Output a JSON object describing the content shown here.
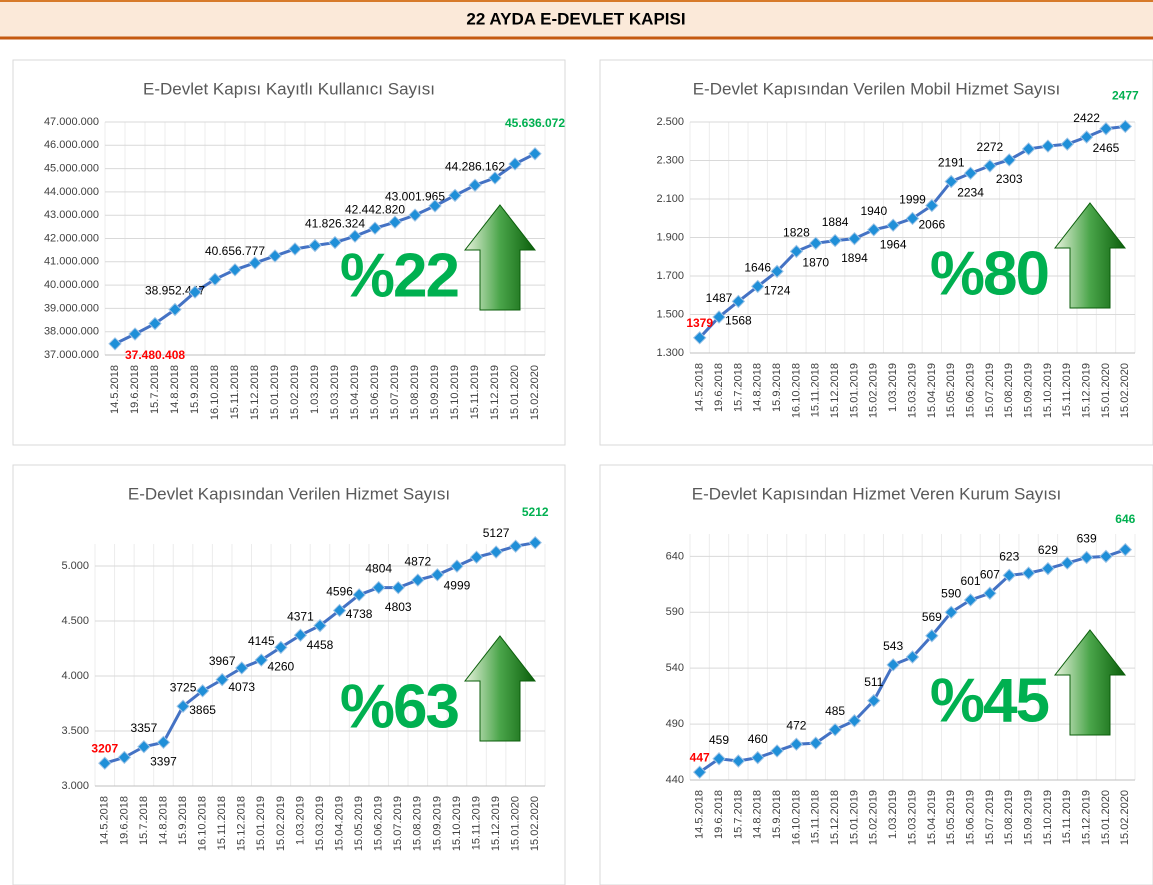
{
  "header": {
    "title": "22 AYDA E-DEVLET KAPISI"
  },
  "chart_data": [
    {
      "type": "line",
      "title": "E-Devlet Kapısı Kayıtlı Kullanıcı Sayısı",
      "annotation": "%22",
      "categories": [
        "14.5.2018",
        "19.6.2018",
        "15.7.2018",
        "14.8.2018",
        "15.9.2018",
        "16.10.2018",
        "15.11.2018",
        "15.12.2018",
        "15.01.2019",
        "15.02.2019",
        "1.03.2019",
        "15.03.2019",
        "15.04.2019",
        "15.06.2019",
        "15.07.2019",
        "15.08.2019",
        "15.09.2019",
        "15.10.2019",
        "15.11.2019",
        "15.12.2019",
        "15.01.2020",
        "15.02.2020"
      ],
      "values": [
        37480408,
        37900000,
        38350000,
        38952447,
        39700000,
        40250000,
        40656777,
        40950000,
        41250000,
        41550000,
        41700000,
        41826324,
        42100000,
        42442820,
        42700000,
        43001965,
        43400000,
        43850000,
        44286162,
        44600000,
        45200000,
        45636072
      ],
      "value_labels": [
        "37.480.408",
        null,
        null,
        "38.952.447",
        null,
        null,
        "40.656.777",
        null,
        null,
        null,
        null,
        "41.826.324",
        null,
        "42.442.820",
        null,
        "43.001.965",
        null,
        null,
        "44.286.162",
        null,
        null,
        "45.636.072"
      ],
      "color": "#4472c4",
      "marker_color": "#1f8fd8",
      "first_label_color": "#ff0000",
      "last_label_color": "#00b050",
      "grid": true,
      "ylim": [
        37000000,
        47000000
      ],
      "yticks": [
        {
          "value": 37000000,
          "label": "37.000.000"
        },
        {
          "value": 38000000,
          "label": "38.000.000"
        },
        {
          "value": 39000000,
          "label": "39.000.000"
        },
        {
          "value": 40000000,
          "label": "40.000.000"
        },
        {
          "value": 41000000,
          "label": "41.000.000"
        },
        {
          "value": 42000000,
          "label": "42.000.000"
        },
        {
          "value": 43000000,
          "label": "43.000.000"
        },
        {
          "value": 44000000,
          "label": "44.000.000"
        },
        {
          "value": 45000000,
          "label": "45.000.000"
        },
        {
          "value": 46000000,
          "label": "46.000.000"
        },
        {
          "value": 47000000,
          "label": "47.000.000"
        }
      ]
    },
    {
      "type": "line",
      "title": "E-Devlet Kapısından Verilen Mobil Hizmet Sayısı",
      "annotation": "%80",
      "categories": [
        "14.5.2018",
        "19.6.2018",
        "15.7.2018",
        "14.8.2018",
        "15.9.2018",
        "16.10.2018",
        "15.11.2018",
        "15.12.2018",
        "15.01.2019",
        "15.02.2019",
        "1.03.2019",
        "15.03.2019",
        "15.04.2019",
        "15.05.2019",
        "15.06.2019",
        "15.07.2019",
        "15.08.2019",
        "15.09.2019",
        "15.10.2019",
        "15.11.2019",
        "15.12.2019",
        "15.01.2020",
        "15.02.2020"
      ],
      "values": [
        1379,
        1487,
        1568,
        1646,
        1724,
        1828,
        1870,
        1884,
        1894,
        1940,
        1964,
        1999,
        2066,
        2191,
        2234,
        2272,
        2303,
        2360,
        2375,
        2385,
        2422,
        2465,
        2477
      ],
      "value_labels": [
        "1379",
        "1487",
        "1568",
        "1646",
        "1724",
        "1828",
        "1870",
        "1884",
        "1894",
        "1940",
        "1964",
        "1999",
        "2066",
        "2191",
        "2234",
        "2272",
        "2303",
        null,
        null,
        null,
        "2422",
        "2465",
        "2477"
      ],
      "color": "#4472c4",
      "marker_color": "#1f8fd8",
      "first_label_color": "#ff0000",
      "last_label_color": "#00b050",
      "grid": true,
      "ylim": [
        1300,
        2500
      ],
      "yticks": [
        {
          "value": 1300,
          "label": "1.300"
        },
        {
          "value": 1500,
          "label": "1.500"
        },
        {
          "value": 1700,
          "label": "1.700"
        },
        {
          "value": 1900,
          "label": "1.900"
        },
        {
          "value": 2100,
          "label": "2.100"
        },
        {
          "value": 2300,
          "label": "2.300"
        },
        {
          "value": 2500,
          "label": "2.500"
        }
      ]
    },
    {
      "type": "line",
      "title": "E-Devlet Kapısından Verilen Hizmet Sayısı",
      "annotation": "%63",
      "categories": [
        "14.5.2018",
        "19.6.2018",
        "15.7.2018",
        "14.8.2018",
        "15.9.2018",
        "16.10.2018",
        "15.11.2018",
        "15.12.2018",
        "15.01.2019",
        "15.02.2019",
        "1.03.2019",
        "15.03.2019",
        "15.04.2019",
        "15.05.2019",
        "15.06.2019",
        "15.07.2019",
        "15.08.2019",
        "15.09.2019",
        "15.10.2019",
        "15.11.2019",
        "15.12.2019",
        "15.01.2020",
        "15.02.2020"
      ],
      "values": [
        3207,
        3260,
        3357,
        3397,
        3725,
        3865,
        3967,
        4073,
        4145,
        4260,
        4371,
        4458,
        4596,
        4738,
        4804,
        4803,
        4872,
        4920,
        4999,
        5080,
        5127,
        5180,
        5212
      ],
      "value_labels": [
        "3207",
        null,
        "3357",
        "3397",
        "3725",
        "3865",
        "3967",
        "4073",
        "4145",
        "4260",
        "4371",
        "4458",
        "4596",
        "4738",
        "4804",
        "4803",
        "4872",
        null,
        "4999",
        null,
        "5127",
        null,
        "5212"
      ],
      "color": "#4472c4",
      "marker_color": "#1f8fd8",
      "first_label_color": "#ff0000",
      "last_label_color": "#00b050",
      "grid": true,
      "ylim": [
        3000,
        5200
      ],
      "yticks": [
        {
          "value": 3000,
          "label": "3.000"
        },
        {
          "value": 3500,
          "label": "3.500"
        },
        {
          "value": 4000,
          "label": "4.000"
        },
        {
          "value": 4500,
          "label": "4.500"
        },
        {
          "value": 5000,
          "label": "5.000"
        }
      ]
    },
    {
      "type": "line",
      "title": "E-Devlet Kapısından Hizmet Veren Kurum Sayısı",
      "annotation": "%45",
      "categories": [
        "14.5.2018",
        "19.6.2018",
        "15.7.2018",
        "14.8.2018",
        "15.9.2018",
        "16.10.2018",
        "15.11.2018",
        "15.12.2018",
        "15.01.2019",
        "15.02.2019",
        "1.03.2019",
        "15.03.2019",
        "15.04.2019",
        "15.05.2019",
        "15.06.2019",
        "15.07.2019",
        "15.08.2019",
        "15.09.2019",
        "15.10.2019",
        "15.11.2019",
        "15.12.2019",
        "15.01.2020",
        "15.02.2020"
      ],
      "values": [
        447,
        459,
        457,
        460,
        466,
        472,
        473,
        485,
        493,
        511,
        543,
        550,
        569,
        590,
        601,
        607,
        623,
        625,
        629,
        634,
        639,
        640,
        646
      ],
      "value_labels": [
        "447",
        "459",
        null,
        "460",
        null,
        "472",
        null,
        "485",
        null,
        "511",
        "543",
        null,
        "569",
        "590",
        "601",
        "607",
        "623",
        null,
        "629",
        null,
        "639",
        null,
        "646"
      ],
      "color": "#4472c4",
      "marker_color": "#1f8fd8",
      "first_label_color": "#ff0000",
      "last_label_color": "#00b050",
      "grid": true,
      "ylim": [
        440,
        660
      ],
      "yticks": [
        440,
        490,
        540,
        590,
        640
      ]
    }
  ]
}
